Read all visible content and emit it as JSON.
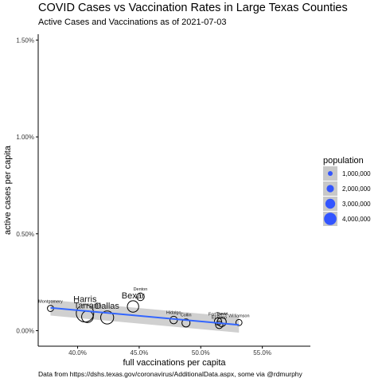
{
  "chart_data": {
    "type": "scatter",
    "title": "COVID Cases vs Vaccination Rates  in Large Texas Counties",
    "subtitle": "Active Cases and Vaccinations as of 2021-07-03",
    "caption": "Data from https://dshs.texas.gov/coronavirus/AdditionalData.aspx, some via @rdmurphy",
    "xlabel": "full vaccinations per capita",
    "ylabel": "active cases per capita",
    "xlim": [
      0.368,
      0.589
    ],
    "ylim": [
      -0.0008,
      0.0153
    ],
    "xticks": [
      0.4,
      0.45,
      0.5,
      0.55
    ],
    "xtick_labels": [
      "40.0%",
      "45.0%",
      "50.0%",
      "55.0%"
    ],
    "yticks": [
      0.0,
      0.005,
      0.01,
      0.015
    ],
    "ytick_labels": [
      "0.00%",
      "0.50%",
      "1.00%",
      "1.50%"
    ],
    "grid": false,
    "legend": {
      "title": "population",
      "position": "right",
      "entries": [
        "1,000,000",
        "2,000,000",
        "3,000,000",
        "4,000,000"
      ],
      "values": [
        1000000,
        2000000,
        3000000,
        4000000
      ]
    },
    "points": [
      {
        "label": "Montgomery",
        "x": 0.378,
        "y": 0.00115,
        "pop": 600000
      },
      {
        "label": "Tarrant",
        "x": 0.408,
        "y": 0.00072,
        "pop": 2100000
      },
      {
        "label": "Dallas",
        "x": 0.424,
        "y": 0.00068,
        "pop": 2600000
      },
      {
        "label": "Harris",
        "x": 0.406,
        "y": 0.0009,
        "pop": 4700000
      },
      {
        "label": "Bexar",
        "x": 0.445,
        "y": 0.00125,
        "pop": 2000000
      },
      {
        "label": "Denton",
        "x": 0.451,
        "y": 0.00175,
        "pop": 900000
      },
      {
        "label": "Hidalgo",
        "x": 0.478,
        "y": 0.00055,
        "pop": 870000
      },
      {
        "label": "Collin",
        "x": 0.488,
        "y": 0.0004,
        "pop": 1000000
      },
      {
        "label": "El Paso",
        "x": 0.515,
        "y": 0.0003,
        "pop": 840000
      },
      {
        "label": "Fort Bend",
        "x": 0.514,
        "y": 0.00048,
        "pop": 810000
      },
      {
        "label": "Travis",
        "x": 0.517,
        "y": 0.00045,
        "pop": 1270000
      },
      {
        "label": "Williamson",
        "x": 0.531,
        "y": 0.00042,
        "pop": 590000
      }
    ],
    "trend": {
      "method": "lm",
      "x": [
        0.378,
        0.531
      ],
      "y": [
        0.00118,
        0.0003
      ],
      "ci": 0.0004
    }
  },
  "colors": {
    "trend": "#3366ff",
    "ribbon": "#c8c8c8",
    "legend_fill": "#3355ff",
    "axis": "#000000",
    "text": "#333333"
  }
}
